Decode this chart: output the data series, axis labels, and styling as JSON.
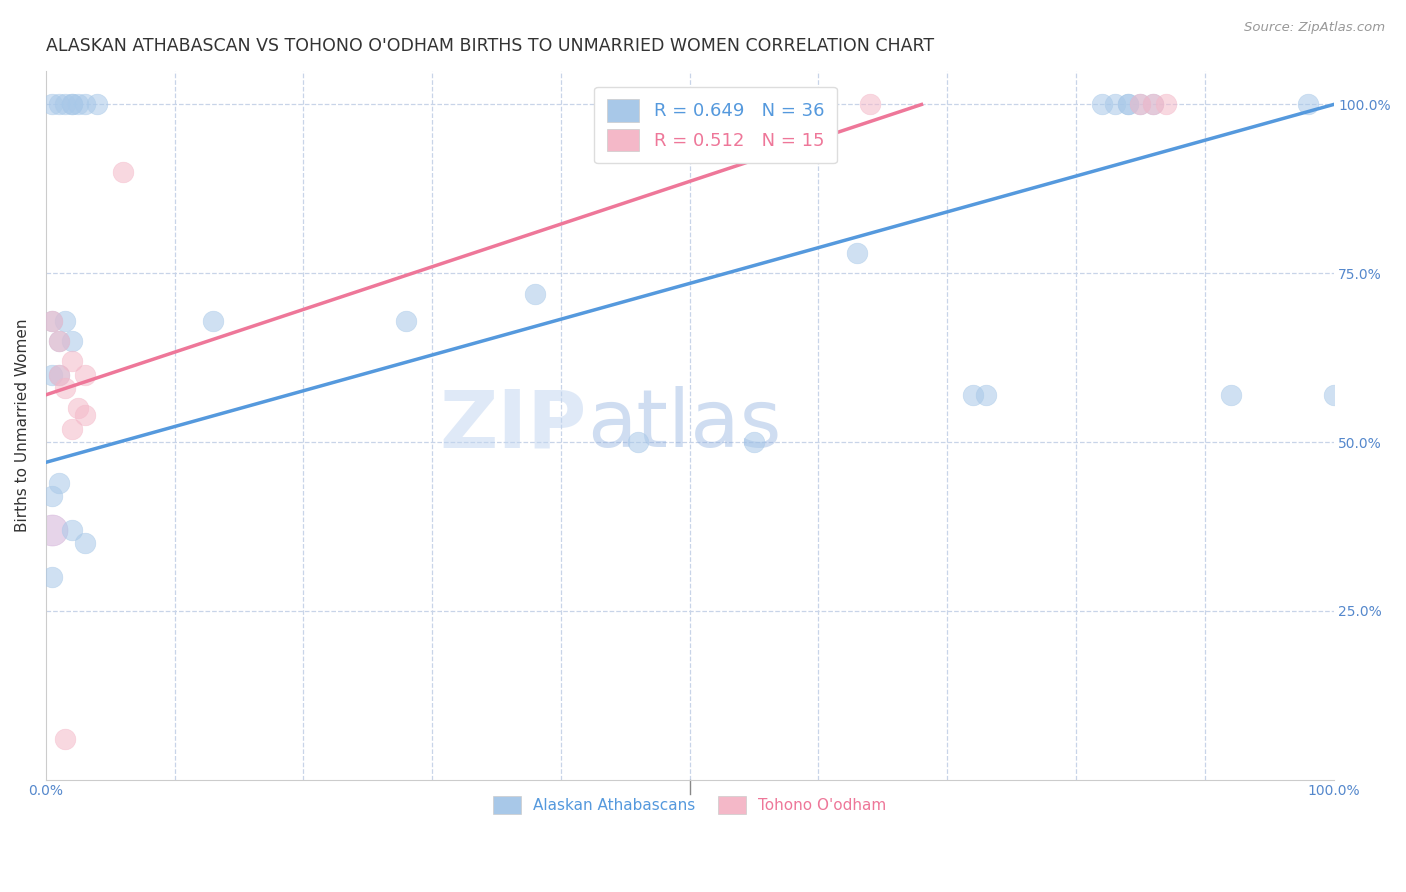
{
  "title": "ALASKAN ATHABASCAN VS TOHONO O'ODHAM BIRTHS TO UNMARRIED WOMEN CORRELATION CHART",
  "source": "Source: ZipAtlas.com",
  "ylabel": "Births to Unmarried Women",
  "legend_label_blue": "Alaskan Athabascans",
  "legend_label_pink": "Tohono O'odham",
  "legend_r_blue": "R = 0.649",
  "legend_n_blue": "N = 36",
  "legend_r_pink": "R = 0.512",
  "legend_n_pink": "N = 15",
  "blue_color": "#A8C8E8",
  "pink_color": "#F4B8C8",
  "blue_line_color": "#5599DD",
  "pink_line_color": "#EE7799",
  "watermark_part1": "ZIP",
  "watermark_part2": "atlas",
  "blue_scatter_x": [
    0.005,
    0.01,
    0.015,
    0.02,
    0.02,
    0.025,
    0.03,
    0.04,
    0.005,
    0.01,
    0.015,
    0.02,
    0.005,
    0.01,
    0.005,
    0.01,
    0.005,
    0.02,
    0.03,
    0.13,
    0.28,
    0.38,
    0.46,
    0.55,
    0.63,
    0.72,
    0.73,
    0.82,
    0.83,
    0.84,
    0.84,
    0.85,
    0.86,
    0.92,
    0.98,
    1.0
  ],
  "blue_scatter_y": [
    1.0,
    1.0,
    1.0,
    1.0,
    1.0,
    1.0,
    1.0,
    1.0,
    0.68,
    0.65,
    0.68,
    0.65,
    0.6,
    0.6,
    0.42,
    0.44,
    0.3,
    0.37,
    0.35,
    0.68,
    0.68,
    0.72,
    0.5,
    0.5,
    0.78,
    0.57,
    0.57,
    1.0,
    1.0,
    1.0,
    1.0,
    1.0,
    1.0,
    0.57,
    1.0,
    0.57
  ],
  "pink_scatter_x": [
    0.005,
    0.01,
    0.01,
    0.015,
    0.02,
    0.02,
    0.025,
    0.03,
    0.03,
    0.06,
    0.64,
    0.85,
    0.86,
    0.87,
    0.015
  ],
  "pink_scatter_y": [
    0.68,
    0.65,
    0.6,
    0.58,
    0.62,
    0.52,
    0.55,
    0.6,
    0.54,
    0.9,
    1.0,
    1.0,
    1.0,
    1.0,
    0.06
  ],
  "blue_line_x": [
    0.0,
    1.0
  ],
  "blue_line_y": [
    0.47,
    1.0
  ],
  "pink_line_x": [
    0.0,
    0.68
  ],
  "pink_line_y": [
    0.57,
    1.0
  ],
  "xlim": [
    0.0,
    1.0
  ],
  "ylim": [
    0.0,
    1.05
  ],
  "background_color": "#FFFFFF",
  "grid_color": "#C8D4E8",
  "title_color": "#333333",
  "tick_label_color": "#5588CC"
}
